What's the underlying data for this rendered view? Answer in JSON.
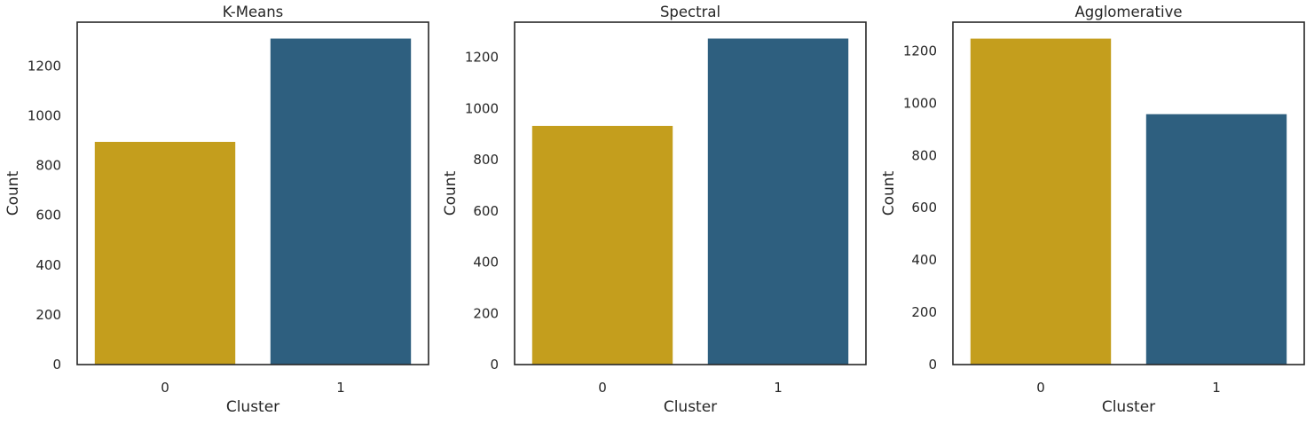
{
  "colors": {
    "cluster_0": "#c49e1d",
    "cluster_1": "#2e5f7f",
    "axis": "#262626",
    "background": "#ffffff"
  },
  "chart_data": [
    {
      "type": "bar",
      "title": "K-Means",
      "xlabel": "Cluster",
      "ylabel": "Count",
      "categories": [
        "0",
        "1"
      ],
      "values": [
        895,
        1310
      ],
      "ylim": [
        0,
        1376
      ],
      "yticks": [
        0,
        200,
        400,
        600,
        800,
        1000,
        1200
      ],
      "grid": false,
      "legend": "none"
    },
    {
      "type": "bar",
      "title": "Spectral",
      "xlabel": "Cluster",
      "ylabel": "Count",
      "categories": [
        "0",
        "1"
      ],
      "values": [
        932,
        1273
      ],
      "ylim": [
        0,
        1337
      ],
      "yticks": [
        0,
        200,
        400,
        600,
        800,
        1000,
        1200
      ],
      "grid": false,
      "legend": "none"
    },
    {
      "type": "bar",
      "title": "Agglomerative",
      "xlabel": "Cluster",
      "ylabel": "Count",
      "categories": [
        "0",
        "1"
      ],
      "values": [
        1247,
        958
      ],
      "ylim": [
        0,
        1310
      ],
      "yticks": [
        0,
        200,
        400,
        600,
        800,
        1000,
        1200
      ],
      "grid": false,
      "legend": "none"
    }
  ]
}
